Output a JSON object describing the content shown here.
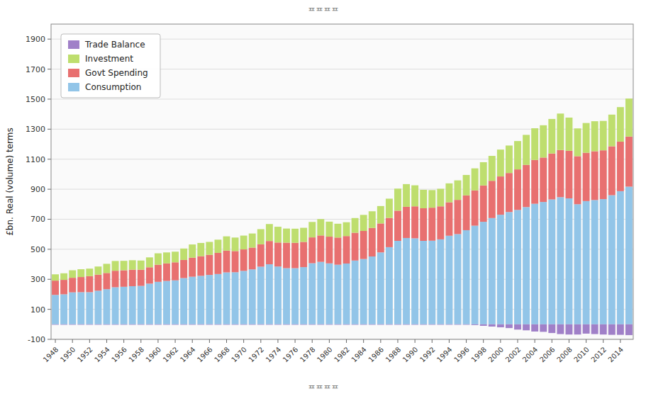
{
  "chart_data": {
    "type": "bar",
    "stacked": true,
    "title": "ᄑᄑᄑᄑ",
    "y_label": "£bn. Real (volume) terms",
    "categories": [
      "1948",
      null,
      "1950",
      null,
      "1952",
      null,
      "1954",
      null,
      "1956",
      null,
      "1958",
      null,
      "1960",
      null,
      "1962",
      null,
      "1964",
      null,
      "1966",
      null,
      "1968",
      null,
      "1970",
      null,
      "1972",
      null,
      "1974",
      null,
      "1976",
      null,
      "1978",
      null,
      "1980",
      null,
      "1982",
      null,
      "1984",
      null,
      "1986",
      null,
      "1988",
      null,
      "1990",
      null,
      "1992",
      null,
      "1994",
      null,
      "1996",
      null,
      "1998",
      null,
      "2000",
      null,
      "2002",
      null,
      "2004",
      null,
      "2006",
      null,
      "2008",
      null,
      "2010",
      null,
      "2012",
      null,
      "2014",
      null
    ],
    "series": [
      {
        "name": "Consumption",
        "color": "#92C5E8",
        "values": [
          196,
          200,
          213,
          214,
          214,
          224,
          234,
          247,
          250,
          254,
          256,
          271,
          283,
          289,
          293,
          308,
          317,
          323,
          329,
          335,
          346,
          347,
          356,
          366,
          384,
          400,
          385,
          374,
          374,
          381,
          407,
          416,
          406,
          397,
          405,
          425,
          435,
          452,
          479,
          514,
          556,
          575,
          573,
          556,
          557,
          566,
          590,
          601,
          627,
          657,
          683,
          708,
          730,
          748,
          762,
          781,
          803,
          815,
          832,
          847,
          839,
          800,
          821,
          828,
          834,
          860,
          887,
          917
        ]
      },
      {
        "name": "Govt Spending",
        "color": "#E87070",
        "values": [
          95,
          96,
          97,
          101,
          107,
          107,
          108,
          110,
          110,
          110,
          108,
          109,
          114,
          117,
          120,
          121,
          127,
          131,
          134,
          141,
          145,
          141,
          143,
          145,
          149,
          155,
          160,
          170,
          169,
          168,
          172,
          176,
          178,
          181,
          183,
          185,
          187,
          190,
          193,
          195,
          201,
          208,
          213,
          217,
          220,
          220,
          223,
          228,
          232,
          235,
          242,
          248,
          255,
          260,
          270,
          281,
          292,
          296,
          306,
          314,
          317,
          320,
          322,
          325,
          325,
          326,
          330,
          334
        ]
      },
      {
        "name": "Investment",
        "color": "#BEDE6E",
        "values": [
          42,
          44,
          50,
          52,
          50,
          54,
          61,
          65,
          63,
          63,
          61,
          66,
          76,
          73,
          71,
          76,
          88,
          88,
          86,
          88,
          95,
          90,
          92,
          94,
          101,
          113,
          105,
          94,
          94,
          94,
          103,
          109,
          100,
          92,
          92,
          98,
          107,
          111,
          116,
          128,
          147,
          151,
          140,
          123,
          117,
          117,
          126,
          130,
          136,
          147,
          155,
          166,
          179,
          183,
          189,
          200,
          211,
          215,
          230,
          243,
          221,
          185,
          198,
          200,
          196,
          211,
          230,
          253
        ]
      },
      {
        "name": "Trade Balance",
        "color": "#A080C8",
        "values": [
          -3,
          -3,
          -3,
          -3,
          -3,
          -3,
          -3,
          -3,
          -3,
          -3,
          -3,
          -3,
          -3,
          -3,
          -3,
          -3,
          -3,
          -3,
          -3,
          -3,
          -3,
          -3,
          -3,
          -3,
          -3,
          -3,
          -3,
          -3,
          -3,
          -3,
          -3,
          -3,
          -3,
          -3,
          -3,
          -3,
          -3,
          -3,
          -3,
          -3,
          -3,
          -3,
          -3,
          -3,
          -3,
          -3,
          -3,
          -3,
          -3,
          -5,
          -10,
          -15,
          -20,
          -25,
          -35,
          -40,
          -48,
          -50,
          -58,
          -65,
          -68,
          -68,
          -62,
          -65,
          -68,
          -70,
          -70,
          -72
        ]
      }
    ],
    "ylim": [
      -100,
      2000
    ],
    "yticks": [
      -100,
      100,
      300,
      500,
      700,
      900,
      1100,
      1300,
      1500,
      1700,
      1900
    ],
    "grid": true,
    "legend": "upper left"
  }
}
